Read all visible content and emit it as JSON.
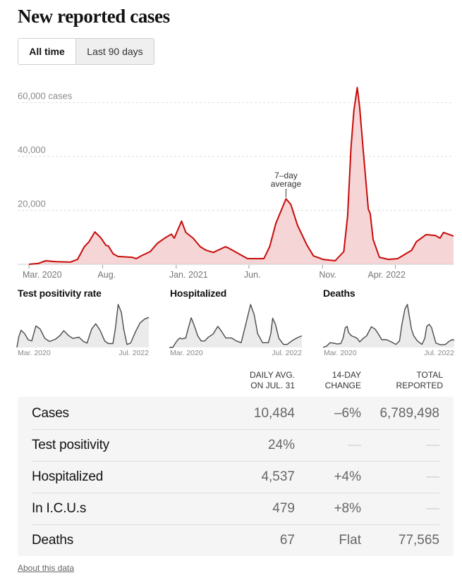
{
  "header": {
    "title": "New reported cases"
  },
  "toggle": {
    "options": [
      {
        "label": "All time",
        "selected": true
      },
      {
        "label": "Last 90 days",
        "selected": false
      }
    ]
  },
  "chart_data": [
    {
      "id": "cases",
      "type": "area",
      "title": "New reported cases",
      "series_name": "Cases (7-day average)",
      "xlabel": "",
      "ylabel": "cases",
      "x_range": [
        "2020-03-01",
        "2022-07-31"
      ],
      "ylim": [
        0,
        68000
      ],
      "grid": true,
      "colors": {
        "line": "#c80a0a",
        "fill": "#f6d5d6",
        "grid": "#dddddd",
        "axis_text": "#8a8a8a"
      },
      "y_ticks": [
        {
          "value": 20000,
          "label": "20,000"
        },
        {
          "value": 40000,
          "label": "40,000"
        },
        {
          "value": 60000,
          "label": "60,000 cases"
        }
      ],
      "x_ticks": [
        {
          "date": "2020-03-01",
          "label": "Mar. 2020"
        },
        {
          "date": "2020-08-01",
          "label": "Aug."
        },
        {
          "date": "2021-01-01",
          "label": "Jan. 2021"
        },
        {
          "date": "2021-06-01",
          "label": "Jun."
        },
        {
          "date": "2021-11-01",
          "label": "Nov."
        },
        {
          "date": "2022-04-01",
          "label": "Apr. 2022"
        }
      ],
      "annotation": {
        "lines": [
          "7–day",
          "average"
        ],
        "date": "2021-08-17",
        "value": 24300
      },
      "points": [
        [
          "2020-03-01",
          0
        ],
        [
          "2020-03-20",
          300
        ],
        [
          "2020-04-05",
          1300
        ],
        [
          "2020-04-25",
          1000
        ],
        [
          "2020-05-26",
          800
        ],
        [
          "2020-06-10",
          1800
        ],
        [
          "2020-06-24",
          6500
        ],
        [
          "2020-07-04",
          8400
        ],
        [
          "2020-07-16",
          12000
        ],
        [
          "2020-07-28",
          9900
        ],
        [
          "2020-08-08",
          7000
        ],
        [
          "2020-08-13",
          6800
        ],
        [
          "2020-08-23",
          3900
        ],
        [
          "2020-09-02",
          2900
        ],
        [
          "2020-10-01",
          2600
        ],
        [
          "2020-10-10",
          2100
        ],
        [
          "2020-10-20",
          3100
        ],
        [
          "2020-11-08",
          4700
        ],
        [
          "2020-11-23",
          7800
        ],
        [
          "2020-12-08",
          9700
        ],
        [
          "2020-12-22",
          11200
        ],
        [
          "2020-12-28",
          9700
        ],
        [
          "2021-01-12",
          16000
        ],
        [
          "2021-01-21",
          11800
        ],
        [
          "2021-02-05",
          9700
        ],
        [
          "2021-02-20",
          6500
        ],
        [
          "2021-03-04",
          5200
        ],
        [
          "2021-03-19",
          4400
        ],
        [
          "2021-04-13",
          6500
        ],
        [
          "2021-04-20",
          6000
        ],
        [
          "2021-05-29",
          2100
        ],
        [
          "2021-07-02",
          2100
        ],
        [
          "2021-07-14",
          6500
        ],
        [
          "2021-07-27",
          15200
        ],
        [
          "2021-08-11",
          21700
        ],
        [
          "2021-08-17",
          24300
        ],
        [
          "2021-08-27",
          22200
        ],
        [
          "2021-09-10",
          14400
        ],
        [
          "2021-09-29",
          7300
        ],
        [
          "2021-10-13",
          3100
        ],
        [
          "2021-11-02",
          1800
        ],
        [
          "2021-11-27",
          1300
        ],
        [
          "2021-12-15",
          4700
        ],
        [
          "2021-12-23",
          17800
        ],
        [
          "2021-12-30",
          43100
        ],
        [
          "2022-01-05",
          57000
        ],
        [
          "2022-01-12",
          65600
        ],
        [
          "2022-01-17",
          58300
        ],
        [
          "2022-01-24",
          43100
        ],
        [
          "2022-02-04",
          20400
        ],
        [
          "2022-02-08",
          18800
        ],
        [
          "2022-02-14",
          9200
        ],
        [
          "2022-02-27",
          2600
        ],
        [
          "2022-03-18",
          1800
        ],
        [
          "2022-04-06",
          2100
        ],
        [
          "2022-05-05",
          5200
        ],
        [
          "2022-05-15",
          8400
        ],
        [
          "2022-06-04",
          11000
        ],
        [
          "2022-06-23",
          10700
        ],
        [
          "2022-07-03",
          9700
        ],
        [
          "2022-07-10",
          11800
        ],
        [
          "2022-07-31",
          10484
        ]
      ]
    },
    {
      "id": "test_positivity",
      "type": "area",
      "title": "Test positivity rate",
      "value_units": "relative to series peak (0–1), no y-axis shown",
      "x_range": [
        "2020-03-01",
        "2022-07-31"
      ],
      "x_labels": [
        "Mar. 2020",
        "Jul. 2022"
      ],
      "colors": {
        "line": "#4a4a4a",
        "fill": "#ebebeb"
      },
      "points": [
        [
          "2020-03-01",
          0
        ],
        [
          "2020-03-13",
          0.24
        ],
        [
          "2020-03-29",
          0.4
        ],
        [
          "2020-04-22",
          0.32
        ],
        [
          "2020-05-15",
          0.18
        ],
        [
          "2020-06-08",
          0.15
        ],
        [
          "2020-07-06",
          0.5
        ],
        [
          "2020-08-03",
          0.43
        ],
        [
          "2020-09-04",
          0.21
        ],
        [
          "2020-10-05",
          0.14
        ],
        [
          "2020-11-13",
          0.19
        ],
        [
          "2020-12-15",
          0.28
        ],
        [
          "2021-01-08",
          0.39
        ],
        [
          "2021-02-08",
          0.28
        ],
        [
          "2021-03-10",
          0.21
        ],
        [
          "2021-04-19",
          0.24
        ],
        [
          "2021-05-20",
          0.14
        ],
        [
          "2021-06-13",
          0.1
        ],
        [
          "2021-07-14",
          0.43
        ],
        [
          "2021-08-10",
          0.55
        ],
        [
          "2021-09-08",
          0.4
        ],
        [
          "2021-10-09",
          0.15
        ],
        [
          "2021-11-02",
          0.09
        ],
        [
          "2021-12-03",
          0.09
        ],
        [
          "2021-12-19",
          0.43
        ],
        [
          "2022-01-07",
          1.0
        ],
        [
          "2022-01-28",
          0.82
        ],
        [
          "2022-02-13",
          0.43
        ],
        [
          "2022-03-07",
          0.07
        ],
        [
          "2022-03-31",
          0.1
        ],
        [
          "2022-05-01",
          0.35
        ],
        [
          "2022-06-02",
          0.57
        ],
        [
          "2022-07-03",
          0.66
        ],
        [
          "2022-07-31",
          0.7
        ]
      ]
    },
    {
      "id": "hospitalized",
      "type": "area",
      "title": "Hospitalized",
      "value_units": "relative to series peak (0–1), no y-axis shown",
      "x_range": [
        "2020-03-01",
        "2022-07-31"
      ],
      "x_labels": [
        "Mar. 2020",
        "Jul. 2022"
      ],
      "colors": {
        "line": "#4a4a4a",
        "fill": "#ebebeb"
      },
      "points": [
        [
          "2020-03-01",
          0
        ],
        [
          "2020-03-24",
          0
        ],
        [
          "2020-04-09",
          0.09
        ],
        [
          "2020-04-25",
          0.17
        ],
        [
          "2020-05-10",
          0.22
        ],
        [
          "2020-05-26",
          0.2
        ],
        [
          "2020-06-19",
          0.22
        ],
        [
          "2020-07-04",
          0.43
        ],
        [
          "2020-07-25",
          0.69
        ],
        [
          "2020-08-13",
          0.52
        ],
        [
          "2020-09-06",
          0.27
        ],
        [
          "2020-09-29",
          0.15
        ],
        [
          "2020-10-23",
          0.15
        ],
        [
          "2020-11-16",
          0.24
        ],
        [
          "2020-12-17",
          0.31
        ],
        [
          "2021-01-18",
          0.49
        ],
        [
          "2021-02-10",
          0.38
        ],
        [
          "2021-03-12",
          0.22
        ],
        [
          "2021-04-20",
          0.22
        ],
        [
          "2021-05-21",
          0.15
        ],
        [
          "2021-06-22",
          0.11
        ],
        [
          "2021-07-15",
          0.43
        ],
        [
          "2021-08-24",
          1.0
        ],
        [
          "2021-09-17",
          0.76
        ],
        [
          "2021-10-10",
          0.32
        ],
        [
          "2021-11-11",
          0.11
        ],
        [
          "2021-12-20",
          0.11
        ],
        [
          "2022-01-05",
          0.32
        ],
        [
          "2022-01-18",
          0.68
        ],
        [
          "2022-02-05",
          0.54
        ],
        [
          "2022-02-28",
          0.21
        ],
        [
          "2022-03-31",
          0.07
        ],
        [
          "2022-04-24",
          0.07
        ],
        [
          "2022-06-02",
          0.17
        ],
        [
          "2022-07-03",
          0.23
        ],
        [
          "2022-07-31",
          0.27
        ]
      ]
    },
    {
      "id": "deaths",
      "type": "area",
      "title": "Deaths",
      "value_units": "relative to series peak (0–1), no y-axis shown",
      "x_range": [
        "2020-03-01",
        "2022-07-31"
      ],
      "x_labels": [
        "Mar. 2020",
        "Jul. 2022"
      ],
      "colors": {
        "line": "#4a4a4a",
        "fill": "#ebebeb"
      },
      "points": [
        [
          "2020-03-01",
          0
        ],
        [
          "2020-03-24",
          0.03
        ],
        [
          "2020-04-17",
          0.11
        ],
        [
          "2020-05-11",
          0.1
        ],
        [
          "2020-06-04",
          0.08
        ],
        [
          "2020-06-28",
          0.09
        ],
        [
          "2020-07-13",
          0.21
        ],
        [
          "2020-07-29",
          0.46
        ],
        [
          "2020-08-10",
          0.49
        ],
        [
          "2020-08-19",
          0.35
        ],
        [
          "2020-09-08",
          0.27
        ],
        [
          "2020-10-01",
          0.24
        ],
        [
          "2020-10-17",
          0.21
        ],
        [
          "2020-11-02",
          0.13
        ],
        [
          "2020-11-26",
          0.21
        ],
        [
          "2020-12-19",
          0.27
        ],
        [
          "2021-01-20",
          0.48
        ],
        [
          "2021-02-13",
          0.43
        ],
        [
          "2021-03-07",
          0.32
        ],
        [
          "2021-03-31",
          0.18
        ],
        [
          "2021-05-02",
          0.18
        ],
        [
          "2021-06-03",
          0.13
        ],
        [
          "2021-07-04",
          0.07
        ],
        [
          "2021-07-28",
          0.15
        ],
        [
          "2021-08-13",
          0.54
        ],
        [
          "2021-09-03",
          0.9
        ],
        [
          "2021-09-19",
          1.0
        ],
        [
          "2021-09-30",
          0.77
        ],
        [
          "2021-10-16",
          0.43
        ],
        [
          "2021-11-01",
          0.27
        ],
        [
          "2021-11-25",
          0.15
        ],
        [
          "2021-12-26",
          0.07
        ],
        [
          "2022-01-14",
          0.21
        ],
        [
          "2022-01-27",
          0.49
        ],
        [
          "2022-02-12",
          0.54
        ],
        [
          "2022-03-01",
          0.46
        ],
        [
          "2022-03-14",
          0.29
        ],
        [
          "2022-03-30",
          0.1
        ],
        [
          "2022-05-01",
          0.06
        ],
        [
          "2022-06-02",
          0.07
        ],
        [
          "2022-06-25",
          0.14
        ],
        [
          "2022-07-16",
          0.18
        ],
        [
          "2022-07-31",
          0.17
        ]
      ]
    }
  ],
  "table": {
    "columns": [
      {
        "lines": [
          "Daily avg.",
          "on Jul. 31"
        ]
      },
      {
        "lines": [
          "14-day",
          "change"
        ]
      },
      {
        "lines": [
          "Total",
          "reported"
        ]
      }
    ],
    "rows": [
      {
        "label": "Cases",
        "daily_avg": "10,484",
        "change_14day": "–6%",
        "total": "6,789,498"
      },
      {
        "label": "Test positivity",
        "daily_avg": "24%",
        "change_14day": "—",
        "total": "—"
      },
      {
        "label": "Hospitalized",
        "daily_avg": "4,537",
        "change_14day": "+4%",
        "total": "—"
      },
      {
        "label": "In I.C.U.s",
        "daily_avg": "479",
        "change_14day": "+8%",
        "total": "—"
      },
      {
        "label": "Deaths",
        "daily_avg": "67",
        "change_14day": "Flat",
        "total": "77,565"
      }
    ]
  },
  "footer": {
    "about_link": "About this data"
  }
}
